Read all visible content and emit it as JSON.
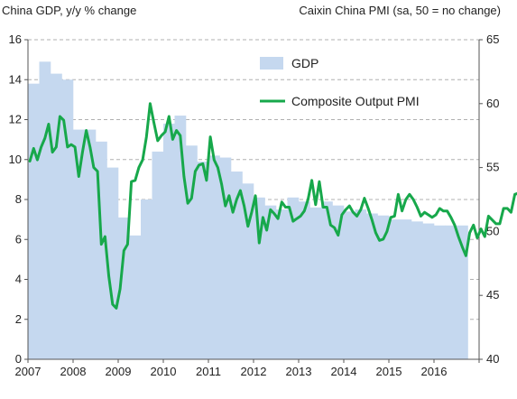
{
  "left_header": "China GDP, y/y % change",
  "right_header": "Caixin China PMI (sa, 50 = no change)",
  "chart_data": {
    "type": "bar+line",
    "left_axis": {
      "ylim": [
        0,
        16
      ],
      "ticks": [
        "0",
        "2",
        "4",
        "6",
        "8",
        "10",
        "12",
        "14",
        "16"
      ]
    },
    "right_axis": {
      "ylim": [
        40,
        65
      ],
      "ticks": [
        "40",
        "45",
        "50",
        "55",
        "60",
        "65"
      ]
    },
    "x_axis": {
      "range": [
        2007.0,
        2017.0
      ],
      "ticks": [
        "2007",
        "2008",
        "2009",
        "2010",
        "2011",
        "2012",
        "2013",
        "2014",
        "2015",
        "2016"
      ]
    },
    "grid": "horizontal dashed",
    "legend_placement": "top-center",
    "colors": {
      "gdp": "#c5d8ef",
      "pmi": "#17a84b",
      "grid": "#b0b0b0"
    },
    "gdp": {
      "name": "GDP",
      "quarters": [
        "2007Q1",
        "2007Q2",
        "2007Q3",
        "2007Q4",
        "2008Q1",
        "2008Q2",
        "2008Q3",
        "2008Q4",
        "2009Q1",
        "2009Q2",
        "2009Q3",
        "2009Q4",
        "2010Q1",
        "2010Q2",
        "2010Q3",
        "2010Q4",
        "2011Q1",
        "2011Q2",
        "2011Q3",
        "2011Q4",
        "2012Q1",
        "2012Q2",
        "2012Q3",
        "2012Q4",
        "2013Q1",
        "2013Q2",
        "2013Q3",
        "2013Q4",
        "2014Q1",
        "2014Q2",
        "2014Q3",
        "2014Q4",
        "2015Q1",
        "2015Q2",
        "2015Q3",
        "2015Q4",
        "2016Q1",
        "2016Q2",
        "2016Q3"
      ],
      "values": [
        13.8,
        14.9,
        14.3,
        14.0,
        11.5,
        11.5,
        10.9,
        9.6,
        7.1,
        6.2,
        8.0,
        10.4,
        11.8,
        12.2,
        10.7,
        9.9,
        10.2,
        10.1,
        9.4,
        8.8,
        8.1,
        7.7,
        7.5,
        8.1,
        7.9,
        7.6,
        7.9,
        7.7,
        7.4,
        7.5,
        7.3,
        7.2,
        7.0,
        7.0,
        6.9,
        6.8,
        6.7,
        6.7,
        6.7
      ]
    },
    "pmi": {
      "name": "Composite Output PMI",
      "start": "2007-01",
      "values": [
        55.5,
        56.5,
        55.6,
        56.6,
        57.3,
        58.4,
        56.2,
        56.6,
        59.0,
        58.7,
        56.6,
        56.8,
        56.6,
        54.3,
        56.2,
        57.9,
        56.6,
        55.0,
        54.7,
        49.0,
        49.6,
        46.5,
        44.3,
        44.0,
        45.5,
        48.5,
        49.0,
        53.9,
        54.0,
        55.0,
        55.6,
        57.4,
        60.0,
        58.5,
        57.1,
        57.5,
        57.8,
        59.0,
        57.2,
        57.9,
        57.5,
        54.3,
        52.2,
        52.6,
        54.7,
        55.2,
        55.3,
        54.0,
        57.4,
        55.6,
        55.0,
        53.7,
        52.0,
        52.8,
        51.5,
        52.5,
        53.2,
        52.0,
        50.4,
        51.5,
        52.8,
        49.1,
        51.1,
        50.1,
        51.7,
        51.4,
        51.0,
        52.3,
        51.9,
        51.9,
        50.8,
        51.0,
        51.2,
        51.6,
        52.5,
        54.0,
        52.1,
        53.9,
        51.9,
        51.9,
        50.5,
        50.3,
        49.7,
        51.3,
        51.7,
        52.0,
        51.5,
        51.2,
        51.7,
        52.6,
        51.8,
        50.9,
        49.9,
        49.3,
        49.4,
        50.0,
        51.1,
        51.2,
        52.9,
        51.6,
        52.5,
        52.9,
        52.5,
        51.9,
        51.2,
        51.5,
        51.3,
        51.1,
        51.3,
        51.8,
        51.6,
        51.6,
        51.1,
        50.5,
        49.6,
        48.8,
        48.1,
        49.9,
        50.5,
        49.5,
        50.2,
        49.6,
        51.2,
        50.9,
        50.6,
        50.6,
        51.8,
        51.8,
        51.5,
        52.9,
        53.0
      ]
    }
  }
}
